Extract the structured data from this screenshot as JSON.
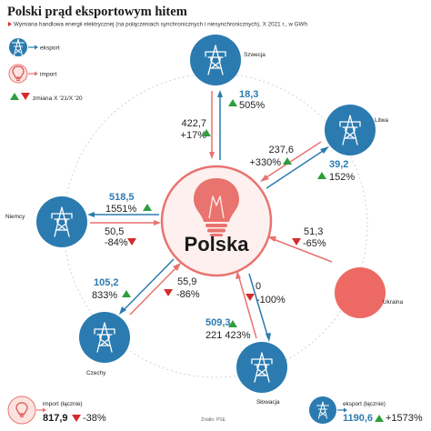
{
  "title": "Polski prąd eksportowym hitem",
  "subtitle": "Wymiana handlowa energii elektrycznej (na połączeniach synchronicznych i niesynchronicznych), X 2021 r., w GWh",
  "legend": {
    "export": "eksport",
    "import": "import",
    "change": "zmiana X '21/X '20"
  },
  "center_label": "Polska",
  "source": "Źródło: PSE",
  "colors": {
    "export": "#2b7bb0",
    "import": "#e8736f",
    "up": "#2e9e3e",
    "down": "#d62b2b"
  },
  "chart_data": {
    "type": "flow-map",
    "title": "Polski prąd eksportowym hitem",
    "subtitle": "Wymiana handlowa energii elektrycznej (na połączeniach synchronicznych i niesynchronicznych), X 2021 r., w GWh",
    "unit": "GWh",
    "countries": [
      {
        "name": "Szwecja",
        "export": "18,3",
        "export_change": "505%",
        "export_dir": "up",
        "import": "422,7",
        "import_change": "+17%",
        "import_dir": "up"
      },
      {
        "name": "Litwa",
        "export": "39,2",
        "export_change": "152%",
        "export_dir": "up",
        "import": "237,6",
        "import_change": "+330%",
        "import_dir": "up"
      },
      {
        "name": "Niemcy",
        "export": "518,5",
        "export_change": "1551%",
        "export_dir": "up",
        "import": "50,5",
        "import_change": "-84%",
        "import_dir": "down"
      },
      {
        "name": "Ukraina",
        "export": null,
        "export_change": null,
        "export_dir": null,
        "import": "51,3",
        "import_change": "-65%",
        "import_dir": "down"
      },
      {
        "name": "Czechy",
        "export": "105,2",
        "export_change": "833%",
        "export_dir": "up",
        "import": "55,9",
        "import_change": "-86%",
        "import_dir": "down"
      },
      {
        "name": "Słowacja",
        "export": "509,3",
        "export_change": "221 423%",
        "export_dir": "up",
        "import": "0",
        "import_change": "-100%",
        "import_dir": "down"
      }
    ],
    "totals": {
      "import_label": "import (łącznie)",
      "import_value": "817,9",
      "import_change": "-38%",
      "import_dir": "down",
      "export_label": "eksport (łącznie)",
      "export_value": "1190,6",
      "export_change": "+1573%",
      "export_dir": "up"
    }
  }
}
